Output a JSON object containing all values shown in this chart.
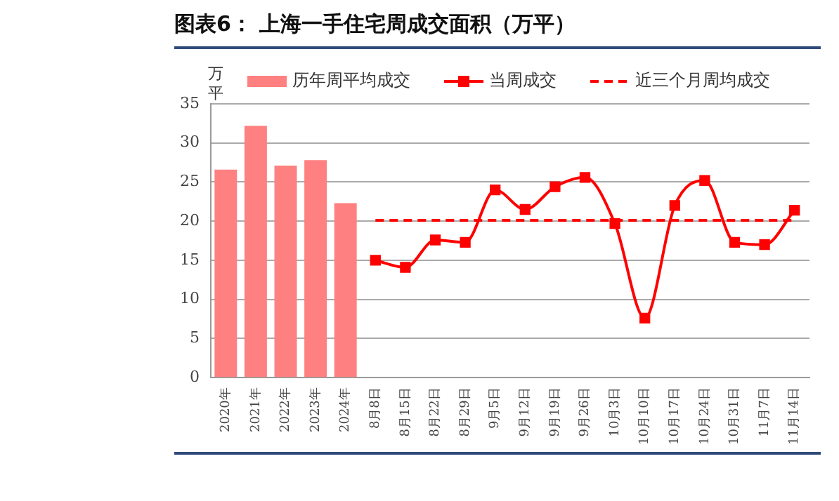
{
  "chart_data": {
    "type": "bar",
    "title": "图表6：  上海一手住宅周成交面积（万平）",
    "ylabel": "万平",
    "categories": [
      "2020年",
      "2021年",
      "2022年",
      "2023年",
      "2024年",
      "8月8日",
      "8月15日",
      "8月22日",
      "8月29日",
      "9月5日",
      "9月12日",
      "9月19日",
      "9月26日",
      "10月3日",
      "10月10日",
      "10月17日",
      "10月24日",
      "10月31日",
      "11月7日",
      "11月14日"
    ],
    "series": [
      {
        "name": "历年周平均成交",
        "color": "#ff8080",
        "values": [
          26.6,
          32.2,
          27.1,
          27.8,
          22.3,
          null,
          null,
          null,
          null,
          null,
          null,
          null,
          null,
          null,
          null,
          null,
          null,
          null,
          null,
          null
        ]
      },
      {
        "name": "当周成交",
        "type": "line",
        "color": "#ff0000",
        "marker": "square",
        "line_style": "solid",
        "values": [
          null,
          null,
          null,
          null,
          null,
          15.0,
          14.1,
          17.6,
          17.3,
          24.0,
          21.5,
          24.4,
          25.6,
          19.7,
          7.6,
          22.0,
          25.2,
          17.3,
          17.0,
          21.4
        ]
      },
      {
        "name": "近三个月周均成交",
        "type": "line",
        "color": "#ff0000",
        "marker": "none",
        "line_style": "dashed",
        "values": [
          null,
          null,
          null,
          null,
          null,
          20.1,
          20.1,
          20.1,
          20.1,
          20.1,
          20.1,
          20.1,
          20.1,
          20.1,
          20.1,
          20.1,
          20.1,
          20.1,
          20.1,
          20.1
        ]
      }
    ],
    "ylim": [
      0,
      35
    ],
    "yticks": [
      0,
      5,
      10,
      15,
      20,
      25,
      30,
      35
    ],
    "grid": "y",
    "legend": "top"
  }
}
